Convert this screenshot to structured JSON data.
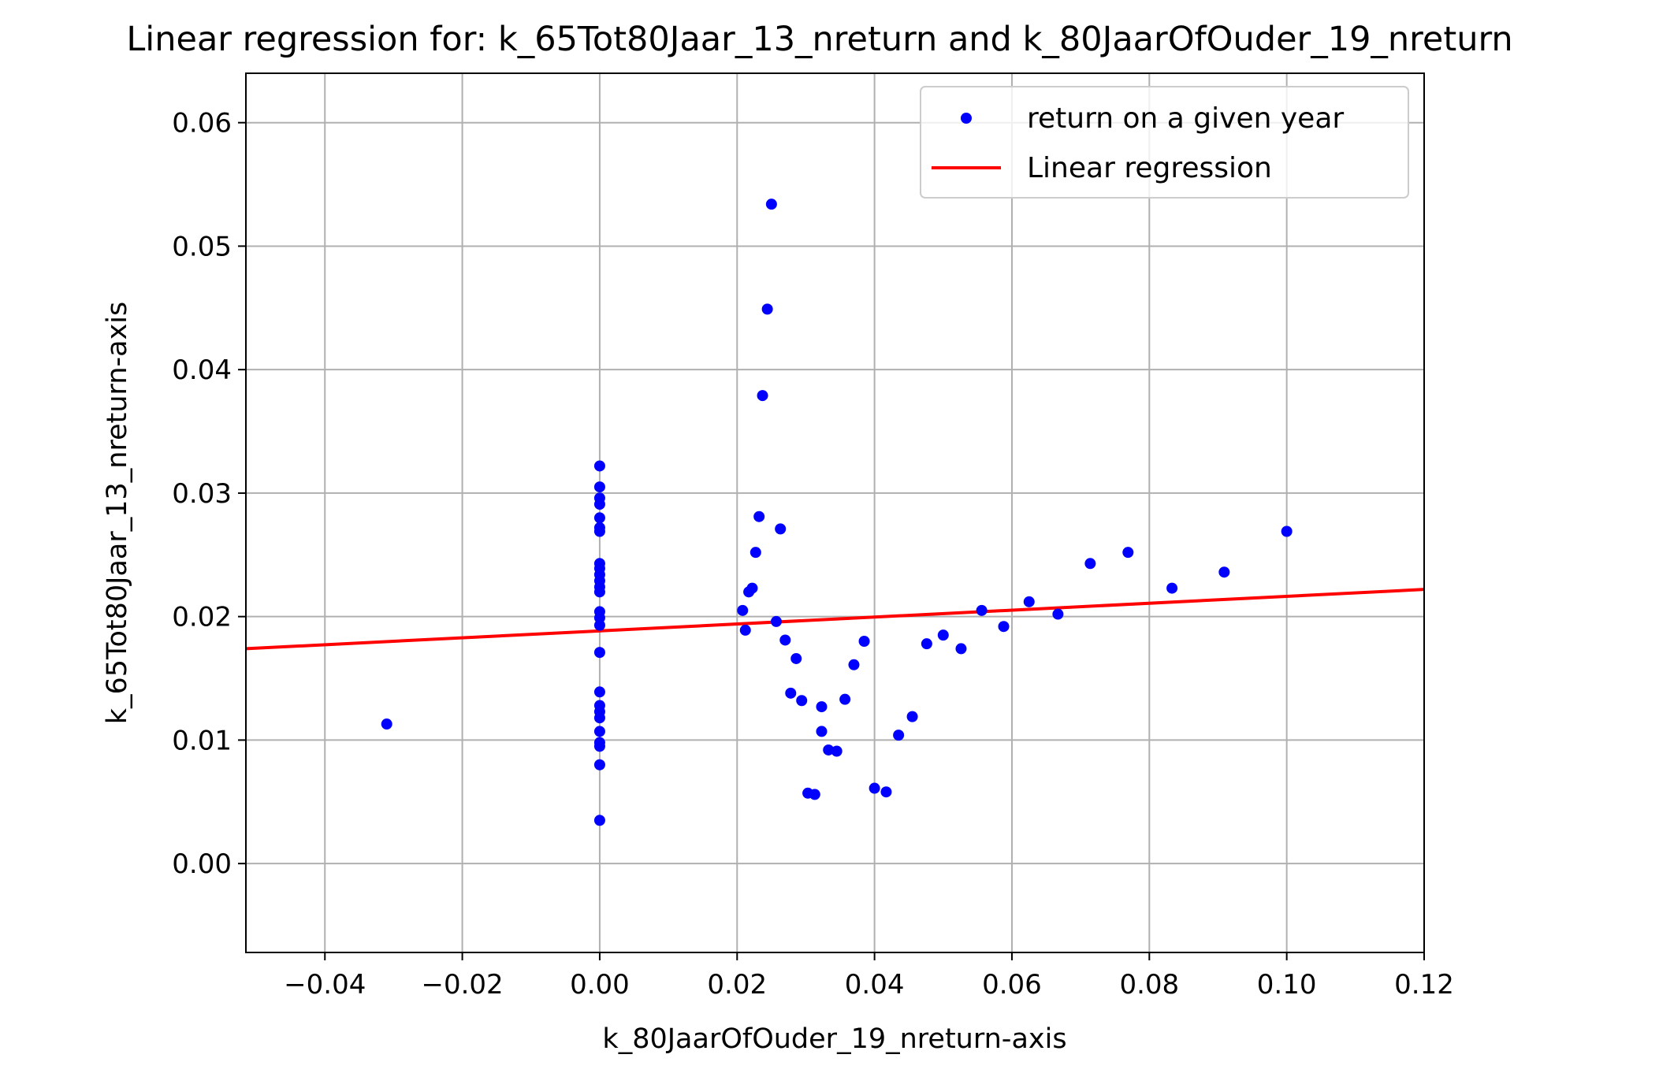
{
  "chart_data": {
    "type": "scatter",
    "title": "Linear regression for: k_65Tot80Jaar_13_nreturn and k_80JaarOfOuder_19_nreturn",
    "xlabel": "k_80JaarOfOuder_19_nreturn-axis",
    "ylabel": "k_65Tot80Jaar_13_nreturn-axis",
    "xlim": [
      -0.0515,
      0.12
    ],
    "ylim": [
      -0.0072,
      0.064
    ],
    "x_ticks": [
      -0.04,
      -0.02,
      0.0,
      0.02,
      0.04,
      0.06,
      0.08,
      0.1,
      0.12
    ],
    "x_tick_labels": [
      "−0.04",
      "−0.02",
      "0.00",
      "0.02",
      "0.04",
      "0.06",
      "0.08",
      "0.10",
      "0.12"
    ],
    "y_ticks": [
      0.0,
      0.01,
      0.02,
      0.03,
      0.04,
      0.05,
      0.06
    ],
    "y_tick_labels": [
      "0.00",
      "0.01",
      "0.02",
      "0.03",
      "0.04",
      "0.05",
      "0.06"
    ],
    "grid": true,
    "legend_position": "top-right",
    "series": [
      {
        "name": "return on a given year",
        "kind": "scatter",
        "color": "#0000ff",
        "points": [
          [
            -0.031,
            0.0113
          ],
          [
            0.0,
            0.0322
          ],
          [
            0.0,
            0.0305
          ],
          [
            0.0,
            0.0296
          ],
          [
            0.0,
            0.0291
          ],
          [
            0.0,
            0.028
          ],
          [
            0.0,
            0.0272
          ],
          [
            0.0,
            0.0269
          ],
          [
            0.0,
            0.0243
          ],
          [
            0.0,
            0.0239
          ],
          [
            0.0,
            0.0234
          ],
          [
            0.0,
            0.0229
          ],
          [
            0.0,
            0.0224
          ],
          [
            0.0,
            0.022
          ],
          [
            0.0,
            0.0204
          ],
          [
            0.0,
            0.0199
          ],
          [
            0.0,
            0.0193
          ],
          [
            0.0,
            0.0171
          ],
          [
            0.0,
            0.0139
          ],
          [
            0.0,
            0.0128
          ],
          [
            0.0,
            0.0123
          ],
          [
            0.0,
            0.0118
          ],
          [
            0.0,
            0.0107
          ],
          [
            0.0,
            0.0098
          ],
          [
            0.0,
            0.0095
          ],
          [
            0.0,
            0.008
          ],
          [
            0.0,
            0.0035
          ],
          [
            0.0208,
            0.0205
          ],
          [
            0.0212,
            0.0189
          ],
          [
            0.0217,
            0.022
          ],
          [
            0.0222,
            0.0223
          ],
          [
            0.0227,
            0.0252
          ],
          [
            0.0232,
            0.0281
          ],
          [
            0.0237,
            0.0379
          ],
          [
            0.0244,
            0.0449
          ],
          [
            0.025,
            0.0534
          ],
          [
            0.0257,
            0.0196
          ],
          [
            0.0263,
            0.0271
          ],
          [
            0.027,
            0.0181
          ],
          [
            0.0278,
            0.0138
          ],
          [
            0.0286,
            0.0166
          ],
          [
            0.0294,
            0.0132
          ],
          [
            0.0303,
            0.0057
          ],
          [
            0.0313,
            0.0056
          ],
          [
            0.0323,
            0.0107
          ],
          [
            0.0323,
            0.0127
          ],
          [
            0.0333,
            0.0092
          ],
          [
            0.0345,
            0.0091
          ],
          [
            0.0357,
            0.0133
          ],
          [
            0.037,
            0.0161
          ],
          [
            0.0385,
            0.018
          ],
          [
            0.04,
            0.0061
          ],
          [
            0.0417,
            0.0058
          ],
          [
            0.0435,
            0.0104
          ],
          [
            0.0455,
            0.0119
          ],
          [
            0.0476,
            0.0178
          ],
          [
            0.05,
            0.0185
          ],
          [
            0.0526,
            0.0174
          ],
          [
            0.0556,
            0.0205
          ],
          [
            0.0588,
            0.0192
          ],
          [
            0.0625,
            0.0212
          ],
          [
            0.0667,
            0.0202
          ],
          [
            0.0714,
            0.0243
          ],
          [
            0.0769,
            0.0252
          ],
          [
            0.0833,
            0.0223
          ],
          [
            0.0909,
            0.0236
          ],
          [
            0.1,
            0.0269
          ]
        ]
      },
      {
        "name": "Linear regression",
        "kind": "line",
        "color": "#ff0000",
        "points": [
          [
            -0.0515,
            0.0174
          ],
          [
            0.12,
            0.0222
          ]
        ]
      }
    ]
  }
}
